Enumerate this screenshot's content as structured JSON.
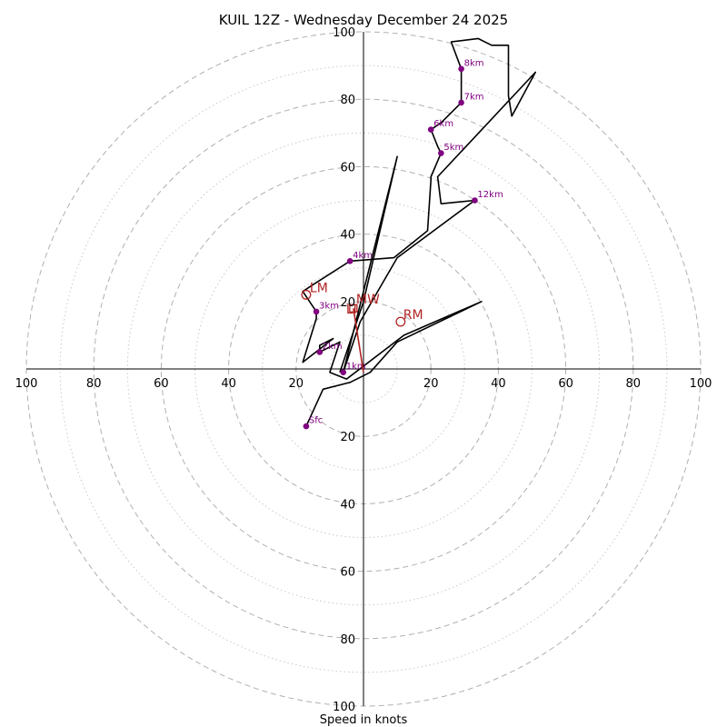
{
  "chart_data": {
    "type": "hodograph",
    "title": "KUIL 12Z - Wednesday December 24 2025",
    "xlabel": "Speed in knots",
    "max_speed": 100,
    "major_rings": [
      20,
      40,
      60,
      80,
      100
    ],
    "minor_rings": [
      10,
      30,
      50,
      70,
      90
    ],
    "x_tick_labels": [
      "100",
      "80",
      "60",
      "40",
      "20",
      "20",
      "40",
      "60",
      "80",
      "100"
    ],
    "y_tick_labels_top": [
      "20",
      "40",
      "60",
      "80",
      "100"
    ],
    "y_tick_labels_bottom": [
      "20",
      "40",
      "60",
      "80",
      "100"
    ],
    "colors": {
      "trace": "#000000",
      "height_marker": "#800080",
      "motion": "#b22222",
      "grid": "#b0b0b0",
      "axis": "#000000"
    },
    "trace": [
      [
        -17,
        -17
      ],
      [
        -12,
        -6
      ],
      [
        -4,
        -4
      ],
      [
        2,
        -1
      ],
      [
        10,
        8
      ],
      [
        35,
        20
      ],
      [
        12,
        10
      ],
      [
        -5,
        -3
      ],
      [
        -10,
        -1
      ],
      [
        -7,
        8
      ],
      [
        -13,
        5
      ],
      [
        -13,
        7
      ],
      [
        -9,
        9
      ],
      [
        -18,
        2
      ],
      [
        -14,
        15
      ],
      [
        -14,
        17
      ],
      [
        -18,
        23
      ],
      [
        -15,
        25
      ],
      [
        -4,
        32
      ],
      [
        9,
        33
      ],
      [
        19,
        41
      ],
      [
        20,
        56
      ],
      [
        20,
        57
      ],
      [
        23,
        64
      ],
      [
        22,
        66
      ],
      [
        20,
        71
      ],
      [
        23,
        73
      ],
      [
        29,
        79
      ],
      [
        29,
        81
      ],
      [
        29,
        85
      ],
      [
        29,
        89
      ],
      [
        26,
        97
      ],
      [
        34,
        98
      ],
      [
        38,
        96
      ],
      [
        43,
        96
      ],
      [
        43,
        81
      ],
      [
        44,
        75
      ],
      [
        51,
        88
      ],
      [
        22,
        57
      ],
      [
        23,
        49
      ],
      [
        33,
        50
      ],
      [
        10,
        33
      ],
      [
        -1,
        14
      ],
      [
        -6,
        -1
      ],
      [
        10,
        63
      ],
      [
        0,
        20
      ],
      [
        -7,
        -1
      ]
    ],
    "height_markers": [
      {
        "label": "Sfc",
        "u": -17,
        "v": -17
      },
      {
        "label": "1km",
        "u": -6,
        "v": -1
      },
      {
        "label": "2km",
        "u": -13,
        "v": 5
      },
      {
        "label": "3km",
        "u": -14,
        "v": 17
      },
      {
        "label": "4km",
        "u": -4,
        "v": 32
      },
      {
        "label": "5km",
        "u": 23,
        "v": 64
      },
      {
        "label": "6km",
        "u": 20,
        "v": 71
      },
      {
        "label": "7km",
        "u": 29,
        "v": 79
      },
      {
        "label": "8km",
        "u": 29,
        "v": 89
      },
      {
        "label": "12km",
        "u": 33,
        "v": 50
      }
    ],
    "motions": [
      {
        "label": "LM",
        "u": -17,
        "v": 22
      },
      {
        "label": "RM",
        "u": 11,
        "v": 14
      },
      {
        "label": "MW",
        "u": -3,
        "v": 18
      },
      {
        "label": "LI",
        "u": -3,
        "v": 18
      }
    ],
    "mean_wind_line": [
      [
        -3,
        18
      ],
      [
        0,
        -1
      ]
    ]
  }
}
